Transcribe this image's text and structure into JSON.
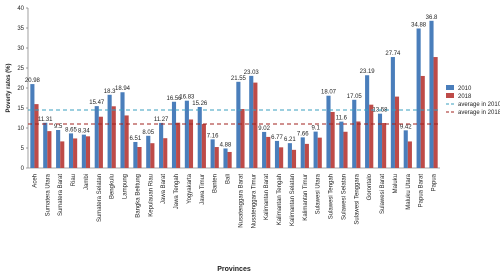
{
  "chart_data": {
    "type": "bar",
    "x_label": "Provinces",
    "y_label": "Poverty rates (%)",
    "categories": [
      "Aceh",
      "Sumatera Utara",
      "Sumatera Barat",
      "Riau",
      "Jambi",
      "Sumatera Selatan",
      "Bengkulu",
      "Lampung",
      "Bangka Belitung",
      "Kepulauan Riau",
      "Jawa Barat",
      "Jawa Tengah",
      "Yogyakarta",
      "Jawa Timur",
      "Banten",
      "Bali",
      "Nusatenggara Barat",
      "Nusatenggara Timur",
      "Kalimantan Barat",
      "Kalimantan Tengah",
      "Kalimantan Selatan",
      "Kalimantan Timur",
      "Sulawesi Utara",
      "Sulawesi Tengah",
      "Sulawesi Selatan",
      "Sulawesi Tenggara",
      "Gorontalo",
      "Sulawesi Barat",
      "Maluku",
      "Maluku Utara",
      "Papua Barat",
      "Papua"
    ],
    "series": [
      {
        "name": "2010",
        "color": "#4a7ebb",
        "values": [
          20.98,
          11.31,
          9.5,
          8.65,
          8.34,
          15.47,
          18.3,
          18.94,
          6.51,
          8.05,
          11.27,
          16.56,
          16.83,
          15.26,
          7.16,
          4.88,
          21.55,
          23.03,
          9.02,
          6.77,
          6.21,
          7.66,
          9.1,
          18.07,
          11.6,
          17.05,
          23.19,
          13.58,
          27.74,
          9.42,
          34.88,
          36.8
        ]
      },
      {
        "name": "2018",
        "color": "#be4b48",
        "values": [
          15.97,
          9.22,
          6.65,
          7.39,
          7.92,
          12.82,
          15.43,
          13.14,
          5.25,
          6.2,
          7.45,
          11.32,
          12.13,
          10.98,
          5.24,
          4.01,
          14.75,
          21.35,
          7.77,
          5.17,
          4.54,
          6.03,
          7.59,
          14.01,
          9.06,
          11.63,
          15.83,
          11.25,
          17.85,
          6.64,
          23.01,
          27.74
        ]
      }
    ],
    "reference_lines": [
      {
        "name": "average in 2010",
        "value": 14.5,
        "color": "#3a9fbf"
      },
      {
        "name": "average in 2018",
        "value": 11,
        "color": "#a0201e"
      }
    ],
    "ylim": [
      0,
      40
    ],
    "yticks": [
      0,
      5,
      10,
      15,
      20,
      25,
      30,
      35,
      40
    ],
    "data_labels_series": 0,
    "legend": "right"
  }
}
